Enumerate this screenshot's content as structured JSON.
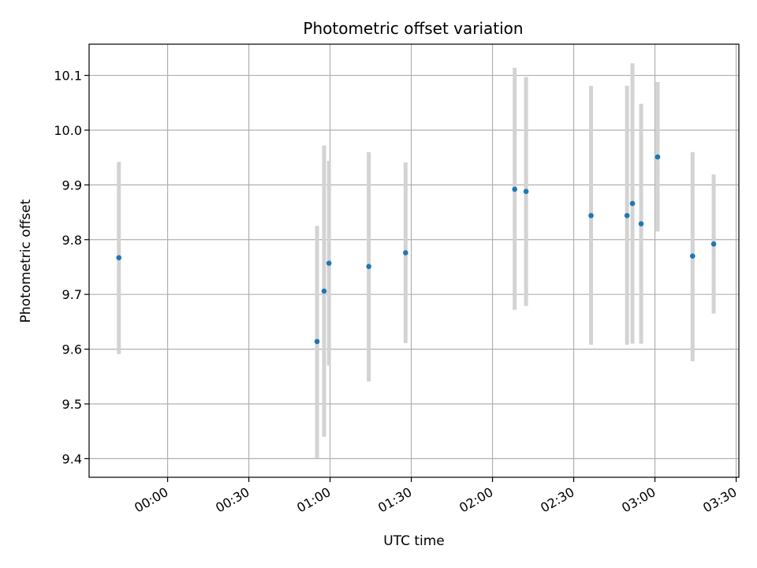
{
  "chart_data": {
    "type": "scatter",
    "title": "Photometric offset variation",
    "xlabel": "UTC time",
    "ylabel": "Photometric offset",
    "x_unit": "minutes since 00:00 UTC",
    "xlim": [
      -29,
      211
    ],
    "ylim": [
      9.366,
      10.157
    ],
    "grid": true,
    "legend": "none",
    "x_ticks": [
      {
        "value": 0,
        "label": "00:00"
      },
      {
        "value": 30,
        "label": "00:30"
      },
      {
        "value": 60,
        "label": "01:00"
      },
      {
        "value": 90,
        "label": "01:30"
      },
      {
        "value": 120,
        "label": "02:00"
      },
      {
        "value": 150,
        "label": "02:30"
      },
      {
        "value": 180,
        "label": "03:00"
      },
      {
        "value": 210,
        "label": "03:30"
      }
    ],
    "y_ticks": [
      {
        "value": 9.4,
        "label": "9.4"
      },
      {
        "value": 9.5,
        "label": "9.5"
      },
      {
        "value": 9.6,
        "label": "9.6"
      },
      {
        "value": 9.7,
        "label": "9.7"
      },
      {
        "value": 9.8,
        "label": "9.8"
      },
      {
        "value": 9.9,
        "label": "9.9"
      },
      {
        "value": 10.0,
        "label": "10.0"
      },
      {
        "value": 10.1,
        "label": "10.1"
      }
    ],
    "marker_color": "#1f77b4",
    "errorbar_color": "#d3d3d3",
    "points": [
      {
        "x": -18.0,
        "y": 9.767,
        "low": 9.591,
        "high": 9.942
      },
      {
        "x": 55.2,
        "y": 9.614,
        "low": 9.401,
        "high": 9.825
      },
      {
        "x": 57.8,
        "y": 9.706,
        "low": 9.44,
        "high": 9.972
      },
      {
        "x": 59.6,
        "y": 9.757,
        "low": 9.57,
        "high": 9.944
      },
      {
        "x": 74.3,
        "y": 9.751,
        "low": 9.541,
        "high": 9.96
      },
      {
        "x": 87.9,
        "y": 9.776,
        "low": 9.611,
        "high": 9.941
      },
      {
        "x": 128.2,
        "y": 9.892,
        "low": 9.672,
        "high": 10.114
      },
      {
        "x": 132.4,
        "y": 9.888,
        "low": 9.679,
        "high": 10.097
      },
      {
        "x": 156.4,
        "y": 9.844,
        "low": 9.608,
        "high": 10.081
      },
      {
        "x": 169.7,
        "y": 9.844,
        "low": 9.608,
        "high": 10.081
      },
      {
        "x": 171.7,
        "y": 9.866,
        "low": 9.61,
        "high": 10.122
      },
      {
        "x": 174.9,
        "y": 9.829,
        "low": 9.61,
        "high": 10.048
      },
      {
        "x": 181.0,
        "y": 9.951,
        "low": 9.815,
        "high": 10.088
      },
      {
        "x": 193.9,
        "y": 9.77,
        "low": 9.578,
        "high": 9.96
      },
      {
        "x": 201.7,
        "y": 9.792,
        "low": 9.665,
        "high": 9.919
      }
    ]
  }
}
